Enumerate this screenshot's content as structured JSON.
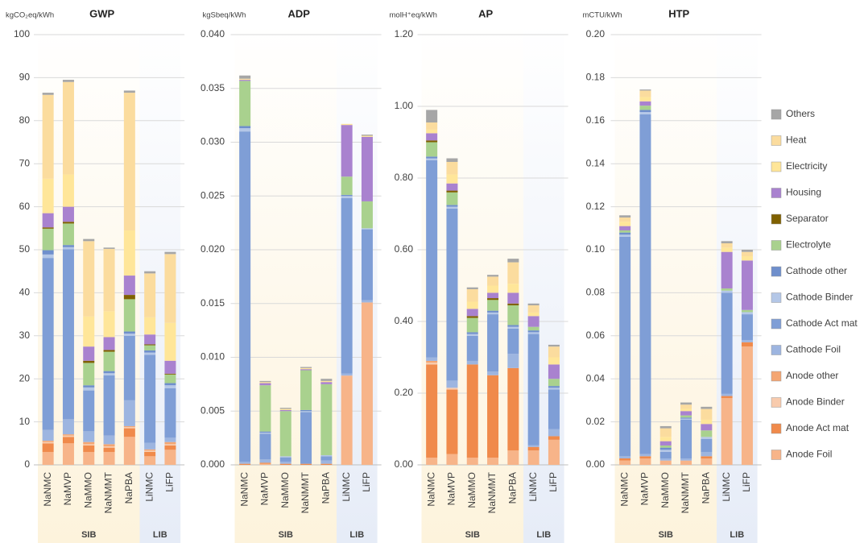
{
  "chart_data": [
    {
      "type": "bar",
      "stacked": true,
      "title": "GWP",
      "ylabel": "kgCO₂eq/kWh",
      "categories": [
        "NaNMC",
        "NaMVP",
        "NaMMO",
        "NaNMMT",
        "NaPBA",
        "LiNMC",
        "LiFP"
      ],
      "groups": [
        "SIB",
        "SIB",
        "SIB",
        "SIB",
        "SIB",
        "LIB",
        "LIB"
      ],
      "ylim": [
        0,
        100
      ],
      "yticks": [
        0,
        10,
        20,
        30,
        40,
        50,
        60,
        70,
        80,
        90,
        100
      ],
      "grid": true,
      "series": [
        {
          "name": "Anode Foil",
          "color": "#f7b489",
          "values": [
            3,
            5,
            3,
            3,
            6.5,
            2,
            3.5
          ]
        },
        {
          "name": "Anode Act mat",
          "color": "#f08a4b",
          "values": [
            2,
            1.5,
            1.5,
            1,
            2,
            1,
            1
          ]
        },
        {
          "name": "Anode Binder",
          "color": "#f8cbad",
          "values": [
            0.3,
            0.3,
            0.3,
            0.3,
            0.3,
            0.3,
            0.3
          ]
        },
        {
          "name": "Anode other",
          "color": "#f4a672",
          "values": [
            0.3,
            0.3,
            0.5,
            0.5,
            0.2,
            0.3,
            0.5
          ]
        },
        {
          "name": "Cathode Foil",
          "color": "#9db5e0",
          "values": [
            2.5,
            3.5,
            2.5,
            2,
            6,
            1.5,
            1
          ]
        },
        {
          "name": "Cathode Act mat",
          "color": "#7f9ed6",
          "values": [
            40,
            39.5,
            9.5,
            14,
            15,
            20.5,
            11.5
          ]
        },
        {
          "name": "Cathode Binder",
          "color": "#b4c7e7",
          "values": [
            0.8,
            0.5,
            0.7,
            0.5,
            0.5,
            0.5,
            0.7
          ]
        },
        {
          "name": "Cathode other",
          "color": "#6f8fcc",
          "values": [
            1,
            0.5,
            0.5,
            0.5,
            0.5,
            0.5,
            0.5
          ]
        },
        {
          "name": "Electrolyte",
          "color": "#a9d18e",
          "values": [
            5,
            5,
            5.2,
            4.5,
            7.5,
            1.2,
            2
          ]
        },
        {
          "name": "Separator",
          "color": "#7f6000",
          "values": [
            0.3,
            0.4,
            0.5,
            0.4,
            1,
            0.2,
            0.2
          ]
        },
        {
          "name": "Housing",
          "color": "#a982cf",
          "values": [
            3.3,
            3.5,
            3.3,
            3,
            4.5,
            2.3,
            3
          ]
        },
        {
          "name": "Electricity",
          "color": "#ffe699",
          "values": [
            8,
            7.5,
            7,
            6,
            10.5,
            4,
            8.8
          ]
        },
        {
          "name": "Heat",
          "color": "#fbdc9e",
          "values": [
            19.5,
            21.5,
            17.5,
            14.5,
            32,
            10.2,
            16
          ]
        },
        {
          "name": "Others",
          "color": "#a6a6a6",
          "values": [
            0.5,
            0.5,
            0.5,
            0.3,
            0.5,
            0.5,
            0.5
          ]
        }
      ]
    },
    {
      "type": "bar",
      "stacked": true,
      "title": "ADP",
      "ylabel": "kgSbeq/kWh",
      "categories": [
        "NaNMC",
        "NaMVP",
        "NaMMO",
        "NaNMMT",
        "NaPBA",
        "LiNMC",
        "LiFP"
      ],
      "groups": [
        "SIB",
        "SIB",
        "SIB",
        "SIB",
        "SIB",
        "LIB",
        "LIB"
      ],
      "ylim": [
        0,
        0.04
      ],
      "grid": true,
      "yticks": [
        {
          "value": 0,
          "label": "0.000"
        },
        0.005,
        {
          "value": 0.01,
          "label": "0.010"
        },
        0.015,
        {
          "value": 0.02,
          "label": "0.020"
        },
        0.025,
        {
          "value": 0.03,
          "label": "0.030"
        },
        0.035,
        {
          "value": 0.04,
          "label": "0.040"
        }
      ],
      "series": [
        {
          "values": [
            0,
            0.0001,
            0,
            0,
            0,
            0.0083,
            0.0151
          ]
        },
        {
          "values": [
            0.0001,
            0.0001,
            0.0001,
            0.0001,
            0.0001,
            0,
            0
          ]
        },
        {
          "values": [
            0,
            0,
            0,
            0,
            0,
            0,
            0
          ]
        },
        {
          "values": [
            0,
            0,
            0,
            0,
            0,
            0,
            0
          ]
        },
        {
          "values": [
            0.0002,
            0.0003,
            0.0002,
            0,
            0.0003,
            0.0002,
            0.0002
          ]
        },
        {
          "values": [
            0.0307,
            0.0024,
            0.0004,
            0.0048,
            0.0004,
            0.0163,
            0.0066
          ]
        },
        {
          "values": [
            0.0003,
            0.0001,
            0.0001,
            0.0001,
            0.0001,
            0.0002,
            0.0001
          ]
        },
        {
          "values": [
            0.0002,
            0.0001,
            0,
            0.0001,
            0,
            0.0001,
            0
          ]
        },
        {
          "values": [
            0.0042,
            0.0043,
            0.0042,
            0.0037,
            0.0066,
            0.0017,
            0.0025
          ]
        },
        {
          "values": [
            0,
            0,
            0,
            0,
            0,
            0,
            0
          ]
        },
        {
          "values": [
            0.0001,
            0.0002,
            0.0001,
            0.0001,
            0.0002,
            0.0048,
            0.006
          ]
        },
        {
          "values": [
            0.0001,
            0.0001,
            0.0001,
            0.0001,
            0.0001,
            0.0001,
            0.0001
          ]
        },
        {
          "values": [
            0,
            0,
            0,
            0,
            0,
            0,
            0
          ]
        },
        {
          "values": [
            0.0003,
            0.0001,
            0.0001,
            0.0001,
            0.0002,
            0,
            0.0001
          ]
        }
      ]
    },
    {
      "type": "bar",
      "stacked": true,
      "title": "AP",
      "ylabel": "molH⁺eq/kWh",
      "categories": [
        "NaNMC",
        "NaMVP",
        "NaMMO",
        "NaNMMT",
        "NaPBA",
        "LiNMC",
        "LiFP"
      ],
      "groups": [
        "SIB",
        "SIB",
        "SIB",
        "SIB",
        "SIB",
        "LIB",
        "LIB"
      ],
      "ylim": [
        0,
        1.2
      ],
      "grid": true,
      "yticks": [
        {
          "value": 0,
          "label": "0.00"
        },
        {
          "value": 0.2,
          "label": "0.20"
        },
        {
          "value": 0.4,
          "label": "0.40"
        },
        {
          "value": 0.6,
          "label": "0.60"
        },
        {
          "value": 0.8,
          "label": "0.80"
        },
        {
          "value": 1,
          "label": "1.00"
        },
        {
          "value": 1.2,
          "label": "1.20"
        }
      ],
      "series": [
        {
          "values": [
            0.02,
            0.03,
            0.02,
            0.02,
            0.04,
            0.04,
            0.07
          ]
        },
        {
          "values": [
            0.26,
            0.18,
            0.26,
            0.23,
            0.23,
            0.01,
            0.01
          ]
        },
        {
          "values": [
            0.005,
            0.005,
            0,
            0,
            0,
            0,
            0
          ]
        },
        {
          "values": [
            0.005,
            0,
            0,
            0,
            0,
            0,
            0
          ]
        },
        {
          "values": [
            0.01,
            0.02,
            0.01,
            0.01,
            0.04,
            0.005,
            0.02
          ]
        },
        {
          "values": [
            0.55,
            0.48,
            0.07,
            0.16,
            0.07,
            0.31,
            0.11
          ]
        },
        {
          "values": [
            0.005,
            0.005,
            0.005,
            0.005,
            0.005,
            0.005,
            0.005
          ]
        },
        {
          "values": [
            0.005,
            0.005,
            0.005,
            0.005,
            0.005,
            0.005,
            0.005
          ]
        },
        {
          "values": [
            0.04,
            0.035,
            0.04,
            0.03,
            0.055,
            0.01,
            0.02
          ]
        },
        {
          "values": [
            0.005,
            0.005,
            0.005,
            0.005,
            0.005,
            0,
            0
          ]
        },
        {
          "values": [
            0.02,
            0.02,
            0.02,
            0.015,
            0.03,
            0.03,
            0.04
          ]
        },
        {
          "values": [
            0.01,
            0.025,
            0.02,
            0.02,
            0.025,
            0.01,
            0.02
          ]
        },
        {
          "values": [
            0.02,
            0.035,
            0.035,
            0.025,
            0.06,
            0.02,
            0.03
          ]
        },
        {
          "values": [
            0.035,
            0.01,
            0.005,
            0.005,
            0.01,
            0.005,
            0.005
          ]
        }
      ]
    },
    {
      "type": "bar",
      "stacked": true,
      "title": "HTP",
      "ylabel": "mCTU/kWh",
      "categories": [
        "NaNMC",
        "NaMVP",
        "NaMMO",
        "NaNMMT",
        "NaPBA",
        "LiNMC",
        "LiFP"
      ],
      "groups": [
        "SIB",
        "SIB",
        "SIB",
        "SIB",
        "SIB",
        "LIB",
        "LIB"
      ],
      "ylim": [
        0,
        0.2
      ],
      "grid": true,
      "yticks": [
        {
          "value": 0,
          "label": "0.00"
        },
        0.02,
        0.04,
        0.06,
        0.08,
        {
          "value": 0.1,
          "label": "0.10"
        },
        0.12,
        0.14,
        0.16,
        0.18,
        {
          "value": 0.2,
          "label": "0.20"
        }
      ],
      "series": [
        {
          "values": [
            0.002,
            0.003,
            0.002,
            0.002,
            0.003,
            0.031,
            0.055
          ]
        },
        {
          "values": [
            0.001,
            0.001,
            0,
            0,
            0.001,
            0.001,
            0.002
          ]
        },
        {
          "values": [
            0,
            0,
            0,
            0,
            0,
            0,
            0
          ]
        },
        {
          "values": [
            0,
            0,
            0,
            0,
            0,
            0,
            0
          ]
        },
        {
          "values": [
            0.001,
            0.001,
            0.001,
            0.001,
            0.002,
            0.001,
            0.001
          ]
        },
        {
          "values": [
            0.102,
            0.158,
            0.003,
            0.018,
            0.006,
            0.047,
            0.012
          ]
        },
        {
          "values": [
            0.001,
            0.001,
            0.001,
            0.0005,
            0.001,
            0.001,
            0.001
          ]
        },
        {
          "values": [
            0.001,
            0.001,
            0.001,
            0.0005,
            0,
            0,
            0
          ]
        },
        {
          "values": [
            0.001,
            0.002,
            0.001,
            0.001,
            0.003,
            0.001,
            0.001
          ]
        },
        {
          "values": [
            0,
            0,
            0,
            0,
            0,
            0,
            0
          ]
        },
        {
          "values": [
            0.002,
            0.002,
            0.002,
            0.002,
            0.003,
            0.017,
            0.023
          ]
        },
        {
          "values": [
            0.002,
            0.002,
            0.002,
            0.001,
            0.002,
            0.002,
            0.002
          ]
        },
        {
          "values": [
            0.002,
            0.003,
            0.004,
            0.002,
            0.005,
            0.002,
            0.002
          ]
        },
        {
          "values": [
            0.001,
            0.0005,
            0.001,
            0.001,
            0.001,
            0.001,
            0.001
          ]
        }
      ]
    }
  ]
}
